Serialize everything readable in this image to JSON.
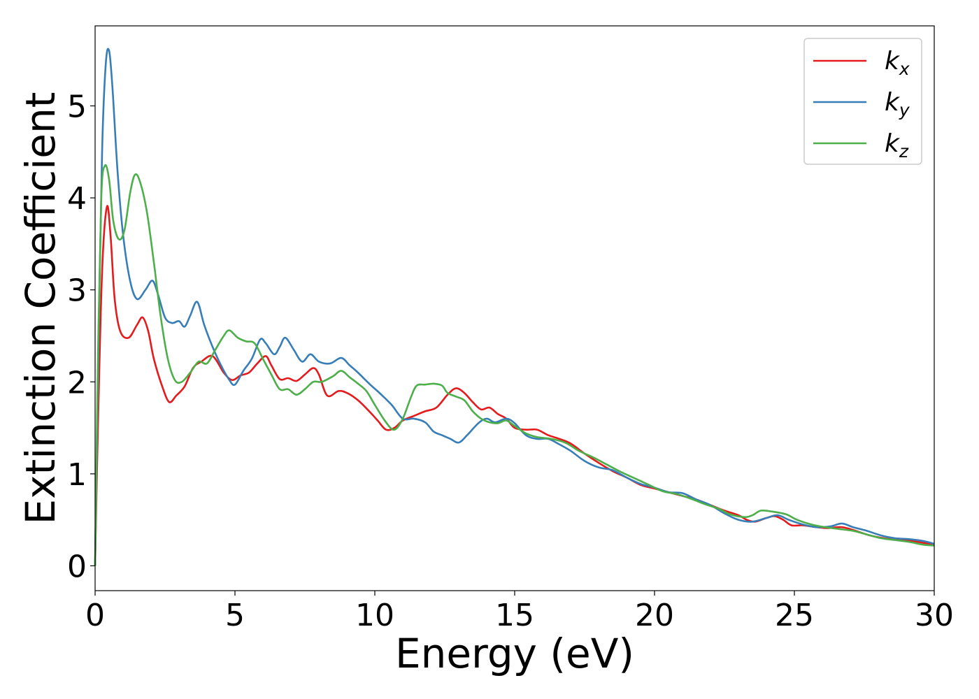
{
  "chart_data": {
    "type": "line",
    "title": "",
    "xlabel": "Energy (eV)",
    "ylabel": "Extinction Coefficient",
    "xlim": [
      0,
      30
    ],
    "ylim": [
      -0.27,
      5.87
    ],
    "xticks": [
      0,
      5,
      10,
      15,
      20,
      25,
      30
    ],
    "xtick_labels": [
      "0",
      "5",
      "10",
      "15",
      "20",
      "25",
      "30"
    ],
    "yticks": [
      0,
      1,
      2,
      3,
      4,
      5
    ],
    "ytick_labels": [
      "0",
      "1",
      "2",
      "3",
      "4",
      "5"
    ],
    "grid": false,
    "legend_position": "top-right",
    "series": [
      {
        "name": "k_x",
        "legend_base": "k",
        "legend_sub": "x",
        "color": "#e41a1c",
        "points": [
          [
            0,
            0
          ],
          [
            0.1,
            1.5
          ],
          [
            0.25,
            3.2
          ],
          [
            0.42,
            3.9
          ],
          [
            0.55,
            3.6
          ],
          [
            0.7,
            2.9
          ],
          [
            0.9,
            2.55
          ],
          [
            1.2,
            2.48
          ],
          [
            1.5,
            2.62
          ],
          [
            1.7,
            2.7
          ],
          [
            1.9,
            2.55
          ],
          [
            2.1,
            2.25
          ],
          [
            2.4,
            1.95
          ],
          [
            2.65,
            1.78
          ],
          [
            2.9,
            1.85
          ],
          [
            3.2,
            1.95
          ],
          [
            3.5,
            2.15
          ],
          [
            3.8,
            2.22
          ],
          [
            4.2,
            2.28
          ],
          [
            4.6,
            2.1
          ],
          [
            4.9,
            2.02
          ],
          [
            5.2,
            2.07
          ],
          [
            5.5,
            2.1
          ],
          [
            5.8,
            2.2
          ],
          [
            6.1,
            2.28
          ],
          [
            6.3,
            2.18
          ],
          [
            6.6,
            2.03
          ],
          [
            6.9,
            2.04
          ],
          [
            7.2,
            2.01
          ],
          [
            7.5,
            2.08
          ],
          [
            7.8,
            2.15
          ],
          [
            8.0,
            2.08
          ],
          [
            8.3,
            1.85
          ],
          [
            8.7,
            1.9
          ],
          [
            9.0,
            1.88
          ],
          [
            9.4,
            1.8
          ],
          [
            9.8,
            1.68
          ],
          [
            10.1,
            1.58
          ],
          [
            10.4,
            1.48
          ],
          [
            10.7,
            1.5
          ],
          [
            11.0,
            1.58
          ],
          [
            11.4,
            1.63
          ],
          [
            11.8,
            1.68
          ],
          [
            12.2,
            1.72
          ],
          [
            12.6,
            1.86
          ],
          [
            12.9,
            1.93
          ],
          [
            13.2,
            1.88
          ],
          [
            13.5,
            1.78
          ],
          [
            13.8,
            1.7
          ],
          [
            14.1,
            1.72
          ],
          [
            14.4,
            1.65
          ],
          [
            14.7,
            1.6
          ],
          [
            15.0,
            1.5
          ],
          [
            15.4,
            1.48
          ],
          [
            15.8,
            1.48
          ],
          [
            16.2,
            1.42
          ],
          [
            16.6,
            1.38
          ],
          [
            17.0,
            1.33
          ],
          [
            17.5,
            1.22
          ],
          [
            18.0,
            1.12
          ],
          [
            18.5,
            1.03
          ],
          [
            19.0,
            0.96
          ],
          [
            19.5,
            0.88
          ],
          [
            20.0,
            0.84
          ],
          [
            20.5,
            0.8
          ],
          [
            21.0,
            0.76
          ],
          [
            21.5,
            0.72
          ],
          [
            22.0,
            0.66
          ],
          [
            22.5,
            0.6
          ],
          [
            23.0,
            0.55
          ],
          [
            23.3,
            0.5
          ],
          [
            23.6,
            0.48
          ],
          [
            24.0,
            0.52
          ],
          [
            24.3,
            0.54
          ],
          [
            24.6,
            0.5
          ],
          [
            24.9,
            0.44
          ],
          [
            25.3,
            0.44
          ],
          [
            25.8,
            0.42
          ],
          [
            26.2,
            0.41
          ],
          [
            26.7,
            0.42
          ],
          [
            27.2,
            0.38
          ],
          [
            27.7,
            0.33
          ],
          [
            28.2,
            0.3
          ],
          [
            28.7,
            0.28
          ],
          [
            29.2,
            0.27
          ],
          [
            29.6,
            0.25
          ],
          [
            30.0,
            0.23
          ]
        ]
      },
      {
        "name": "k_y",
        "legend_base": "k",
        "legend_sub": "y",
        "color": "#377eb8",
        "points": [
          [
            0,
            0
          ],
          [
            0.1,
            2.0
          ],
          [
            0.25,
            4.5
          ],
          [
            0.38,
            5.45
          ],
          [
            0.5,
            5.6
          ],
          [
            0.62,
            5.2
          ],
          [
            0.8,
            4.3
          ],
          [
            1.0,
            3.6
          ],
          [
            1.25,
            3.1
          ],
          [
            1.5,
            2.9
          ],
          [
            1.8,
            3.0
          ],
          [
            2.05,
            3.1
          ],
          [
            2.25,
            2.95
          ],
          [
            2.5,
            2.7
          ],
          [
            2.75,
            2.64
          ],
          [
            3.0,
            2.66
          ],
          [
            3.2,
            2.6
          ],
          [
            3.4,
            2.72
          ],
          [
            3.65,
            2.87
          ],
          [
            3.9,
            2.62
          ],
          [
            4.2,
            2.38
          ],
          [
            4.5,
            2.18
          ],
          [
            4.8,
            2.02
          ],
          [
            5.0,
            1.97
          ],
          [
            5.3,
            2.12
          ],
          [
            5.6,
            2.25
          ],
          [
            5.9,
            2.46
          ],
          [
            6.1,
            2.42
          ],
          [
            6.4,
            2.3
          ],
          [
            6.6,
            2.38
          ],
          [
            6.8,
            2.48
          ],
          [
            7.1,
            2.35
          ],
          [
            7.4,
            2.22
          ],
          [
            7.7,
            2.3
          ],
          [
            8.0,
            2.22
          ],
          [
            8.4,
            2.2
          ],
          [
            8.8,
            2.26
          ],
          [
            9.1,
            2.18
          ],
          [
            9.4,
            2.1
          ],
          [
            9.8,
            1.98
          ],
          [
            10.2,
            1.87
          ],
          [
            10.6,
            1.75
          ],
          [
            11.0,
            1.6
          ],
          [
            11.4,
            1.6
          ],
          [
            11.8,
            1.56
          ],
          [
            12.1,
            1.46
          ],
          [
            12.4,
            1.42
          ],
          [
            12.7,
            1.38
          ],
          [
            13.0,
            1.34
          ],
          [
            13.3,
            1.42
          ],
          [
            13.7,
            1.55
          ],
          [
            14.0,
            1.6
          ],
          [
            14.3,
            1.56
          ],
          [
            14.7,
            1.6
          ],
          [
            15.0,
            1.55
          ],
          [
            15.4,
            1.42
          ],
          [
            15.8,
            1.38
          ],
          [
            16.2,
            1.38
          ],
          [
            16.6,
            1.32
          ],
          [
            17.0,
            1.25
          ],
          [
            17.5,
            1.14
          ],
          [
            18.0,
            1.07
          ],
          [
            18.5,
            1.04
          ],
          [
            19.0,
            0.96
          ],
          [
            19.5,
            0.89
          ],
          [
            20.0,
            0.85
          ],
          [
            20.5,
            0.8
          ],
          [
            21.0,
            0.79
          ],
          [
            21.5,
            0.72
          ],
          [
            22.0,
            0.66
          ],
          [
            22.5,
            0.57
          ],
          [
            23.0,
            0.5
          ],
          [
            23.5,
            0.48
          ],
          [
            24.0,
            0.52
          ],
          [
            24.4,
            0.55
          ],
          [
            24.8,
            0.5
          ],
          [
            25.3,
            0.45
          ],
          [
            25.8,
            0.42
          ],
          [
            26.3,
            0.43
          ],
          [
            26.7,
            0.46
          ],
          [
            27.1,
            0.42
          ],
          [
            27.6,
            0.38
          ],
          [
            28.1,
            0.33
          ],
          [
            28.6,
            0.3
          ],
          [
            29.1,
            0.29
          ],
          [
            29.6,
            0.27
          ],
          [
            30.0,
            0.24
          ]
        ]
      },
      {
        "name": "k_z",
        "legend_base": "k",
        "legend_sub": "z",
        "color": "#4daf4a",
        "points": [
          [
            0,
            0
          ],
          [
            0.1,
            2.2
          ],
          [
            0.22,
            4.0
          ],
          [
            0.35,
            4.35
          ],
          [
            0.5,
            4.2
          ],
          [
            0.65,
            3.75
          ],
          [
            0.85,
            3.55
          ],
          [
            1.05,
            3.65
          ],
          [
            1.25,
            4.05
          ],
          [
            1.42,
            4.25
          ],
          [
            1.6,
            4.18
          ],
          [
            1.85,
            3.85
          ],
          [
            2.1,
            3.3
          ],
          [
            2.35,
            2.7
          ],
          [
            2.6,
            2.25
          ],
          [
            2.85,
            2.02
          ],
          [
            3.1,
            2.0
          ],
          [
            3.4,
            2.1
          ],
          [
            3.7,
            2.22
          ],
          [
            4.0,
            2.2
          ],
          [
            4.3,
            2.35
          ],
          [
            4.6,
            2.5
          ],
          [
            4.8,
            2.56
          ],
          [
            5.1,
            2.48
          ],
          [
            5.4,
            2.44
          ],
          [
            5.7,
            2.42
          ],
          [
            6.0,
            2.25
          ],
          [
            6.3,
            2.08
          ],
          [
            6.6,
            1.92
          ],
          [
            6.9,
            1.92
          ],
          [
            7.2,
            1.86
          ],
          [
            7.5,
            1.92
          ],
          [
            7.8,
            2.0
          ],
          [
            8.1,
            2.0
          ],
          [
            8.5,
            2.06
          ],
          [
            8.8,
            2.12
          ],
          [
            9.1,
            2.05
          ],
          [
            9.4,
            1.98
          ],
          [
            9.7,
            1.9
          ],
          [
            10.0,
            1.75
          ],
          [
            10.4,
            1.56
          ],
          [
            10.7,
            1.48
          ],
          [
            11.0,
            1.6
          ],
          [
            11.3,
            1.84
          ],
          [
            11.5,
            1.96
          ],
          [
            11.8,
            1.97
          ],
          [
            12.1,
            1.98
          ],
          [
            12.4,
            1.96
          ],
          [
            12.6,
            1.88
          ],
          [
            12.9,
            1.84
          ],
          [
            13.2,
            1.8
          ],
          [
            13.5,
            1.68
          ],
          [
            13.8,
            1.6
          ],
          [
            14.1,
            1.56
          ],
          [
            14.4,
            1.55
          ],
          [
            14.7,
            1.58
          ],
          [
            15.0,
            1.52
          ],
          [
            15.4,
            1.44
          ],
          [
            15.8,
            1.4
          ],
          [
            16.3,
            1.38
          ],
          [
            16.8,
            1.34
          ],
          [
            17.3,
            1.25
          ],
          [
            17.8,
            1.18
          ],
          [
            18.3,
            1.1
          ],
          [
            18.8,
            1.02
          ],
          [
            19.3,
            0.95
          ],
          [
            19.8,
            0.88
          ],
          [
            20.3,
            0.81
          ],
          [
            20.8,
            0.78
          ],
          [
            21.3,
            0.73
          ],
          [
            21.8,
            0.67
          ],
          [
            22.3,
            0.62
          ],
          [
            22.7,
            0.56
          ],
          [
            23.2,
            0.53
          ],
          [
            23.5,
            0.55
          ],
          [
            23.8,
            0.6
          ],
          [
            24.2,
            0.59
          ],
          [
            24.7,
            0.56
          ],
          [
            25.1,
            0.5
          ],
          [
            25.6,
            0.45
          ],
          [
            26.1,
            0.42
          ],
          [
            26.6,
            0.4
          ],
          [
            27.1,
            0.38
          ],
          [
            27.6,
            0.34
          ],
          [
            28.1,
            0.3
          ],
          [
            28.6,
            0.28
          ],
          [
            29.1,
            0.26
          ],
          [
            29.6,
            0.23
          ],
          [
            30.0,
            0.22
          ]
        ]
      }
    ]
  }
}
